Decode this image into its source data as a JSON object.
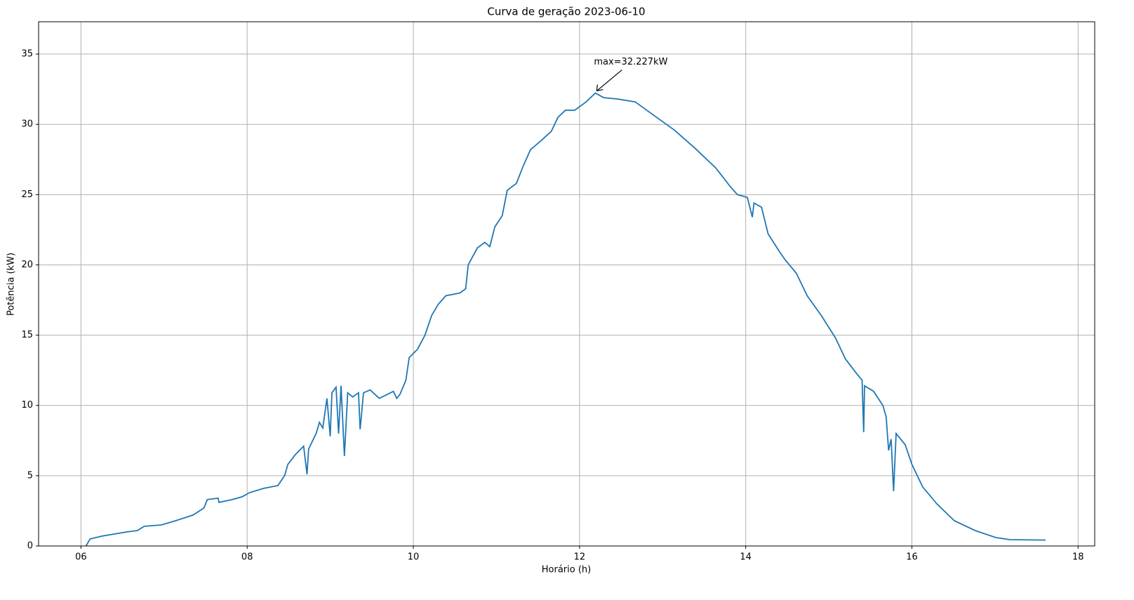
{
  "chart_data": {
    "type": "line",
    "title": "Curva de geração 2023-06-10",
    "xlabel": "Horário (h)",
    "ylabel": "Potência (kW)",
    "series": [
      {
        "name": "Potência",
        "color": "#1f77b4",
        "x": [
          6.06,
          6.11,
          6.25,
          6.55,
          6.68,
          6.76,
          6.97,
          7.14,
          7.35,
          7.48,
          7.52,
          7.65,
          7.66,
          7.82,
          7.94,
          8.03,
          8.2,
          8.37,
          8.45,
          8.49,
          8.58,
          8.68,
          8.72,
          8.74,
          8.83,
          8.87,
          8.91,
          8.96,
          9.0,
          9.02,
          9.07,
          9.1,
          9.13,
          9.17,
          9.21,
          9.27,
          9.34,
          9.36,
          9.4,
          9.48,
          9.59,
          9.76,
          9.8,
          9.84,
          9.91,
          9.95,
          10.05,
          10.14,
          10.22,
          10.3,
          10.39,
          10.56,
          10.63,
          10.66,
          10.77,
          10.86,
          10.92,
          10.98,
          11.07,
          11.13,
          11.24,
          11.32,
          11.41,
          11.53,
          11.66,
          11.74,
          11.83,
          11.94,
          12.08,
          12.19,
          12.29,
          12.46,
          12.67,
          12.88,
          13.14,
          13.39,
          13.64,
          13.81,
          13.9,
          14.02,
          14.08,
          14.1,
          14.19,
          14.27,
          14.4,
          14.47,
          14.61,
          14.74,
          14.91,
          15.08,
          15.2,
          15.33,
          15.4,
          15.42,
          15.43,
          15.54,
          15.65,
          15.69,
          15.72,
          15.75,
          15.78,
          15.81,
          15.92,
          16.0,
          16.13,
          16.3,
          16.51,
          16.76,
          17.01,
          17.18,
          17.61
        ],
        "values": [
          0,
          0.5,
          0.7,
          1.0,
          1.1,
          1.4,
          1.5,
          1.8,
          2.2,
          2.7,
          3.3,
          3.4,
          3.1,
          3.3,
          3.5,
          3.8,
          4.1,
          4.3,
          5.0,
          5.8,
          6.5,
          7.1,
          5.1,
          6.9,
          8.0,
          8.8,
          8.4,
          10.5,
          7.8,
          10.9,
          11.3,
          8.0,
          11.4,
          6.4,
          10.9,
          10.6,
          10.9,
          8.3,
          10.9,
          11.1,
          10.5,
          11.0,
          10.5,
          10.8,
          11.8,
          13.4,
          14.0,
          15.0,
          16.4,
          17.2,
          17.8,
          18.0,
          18.3,
          20.0,
          21.2,
          21.6,
          21.3,
          22.7,
          23.5,
          25.3,
          25.8,
          27.0,
          28.2,
          28.8,
          29.5,
          30.5,
          31.0,
          31.0,
          31.6,
          32.227,
          31.9,
          31.8,
          31.6,
          30.7,
          29.6,
          28.3,
          26.9,
          25.6,
          25.0,
          24.8,
          23.4,
          24.4,
          24.1,
          22.2,
          21.0,
          20.4,
          19.4,
          17.8,
          16.4,
          14.8,
          13.3,
          12.3,
          11.8,
          8.1,
          11.4,
          11.0,
          10.0,
          9.2,
          6.8,
          7.6,
          3.9,
          8.0,
          7.2,
          5.8,
          4.2,
          3.0,
          1.8,
          1.1,
          0.6,
          0.45,
          0.42
        ]
      }
    ],
    "annotation": {
      "text": "max=32.227kW",
      "x": 12.19,
      "y": 32.227
    },
    "xlim": [
      5.49,
      18.2
    ],
    "xticks": [
      {
        "value": 6,
        "label": "06"
      },
      {
        "value": 8,
        "label": "08"
      },
      {
        "value": 10,
        "label": "10"
      },
      {
        "value": 12,
        "label": "12"
      },
      {
        "value": 14,
        "label": "14"
      },
      {
        "value": 16,
        "label": "16"
      },
      {
        "value": 18,
        "label": "18"
      }
    ],
    "ylim": [
      0,
      37.3
    ],
    "yticks": [
      0,
      5,
      10,
      15,
      20,
      25,
      30,
      35
    ],
    "grid": true
  }
}
